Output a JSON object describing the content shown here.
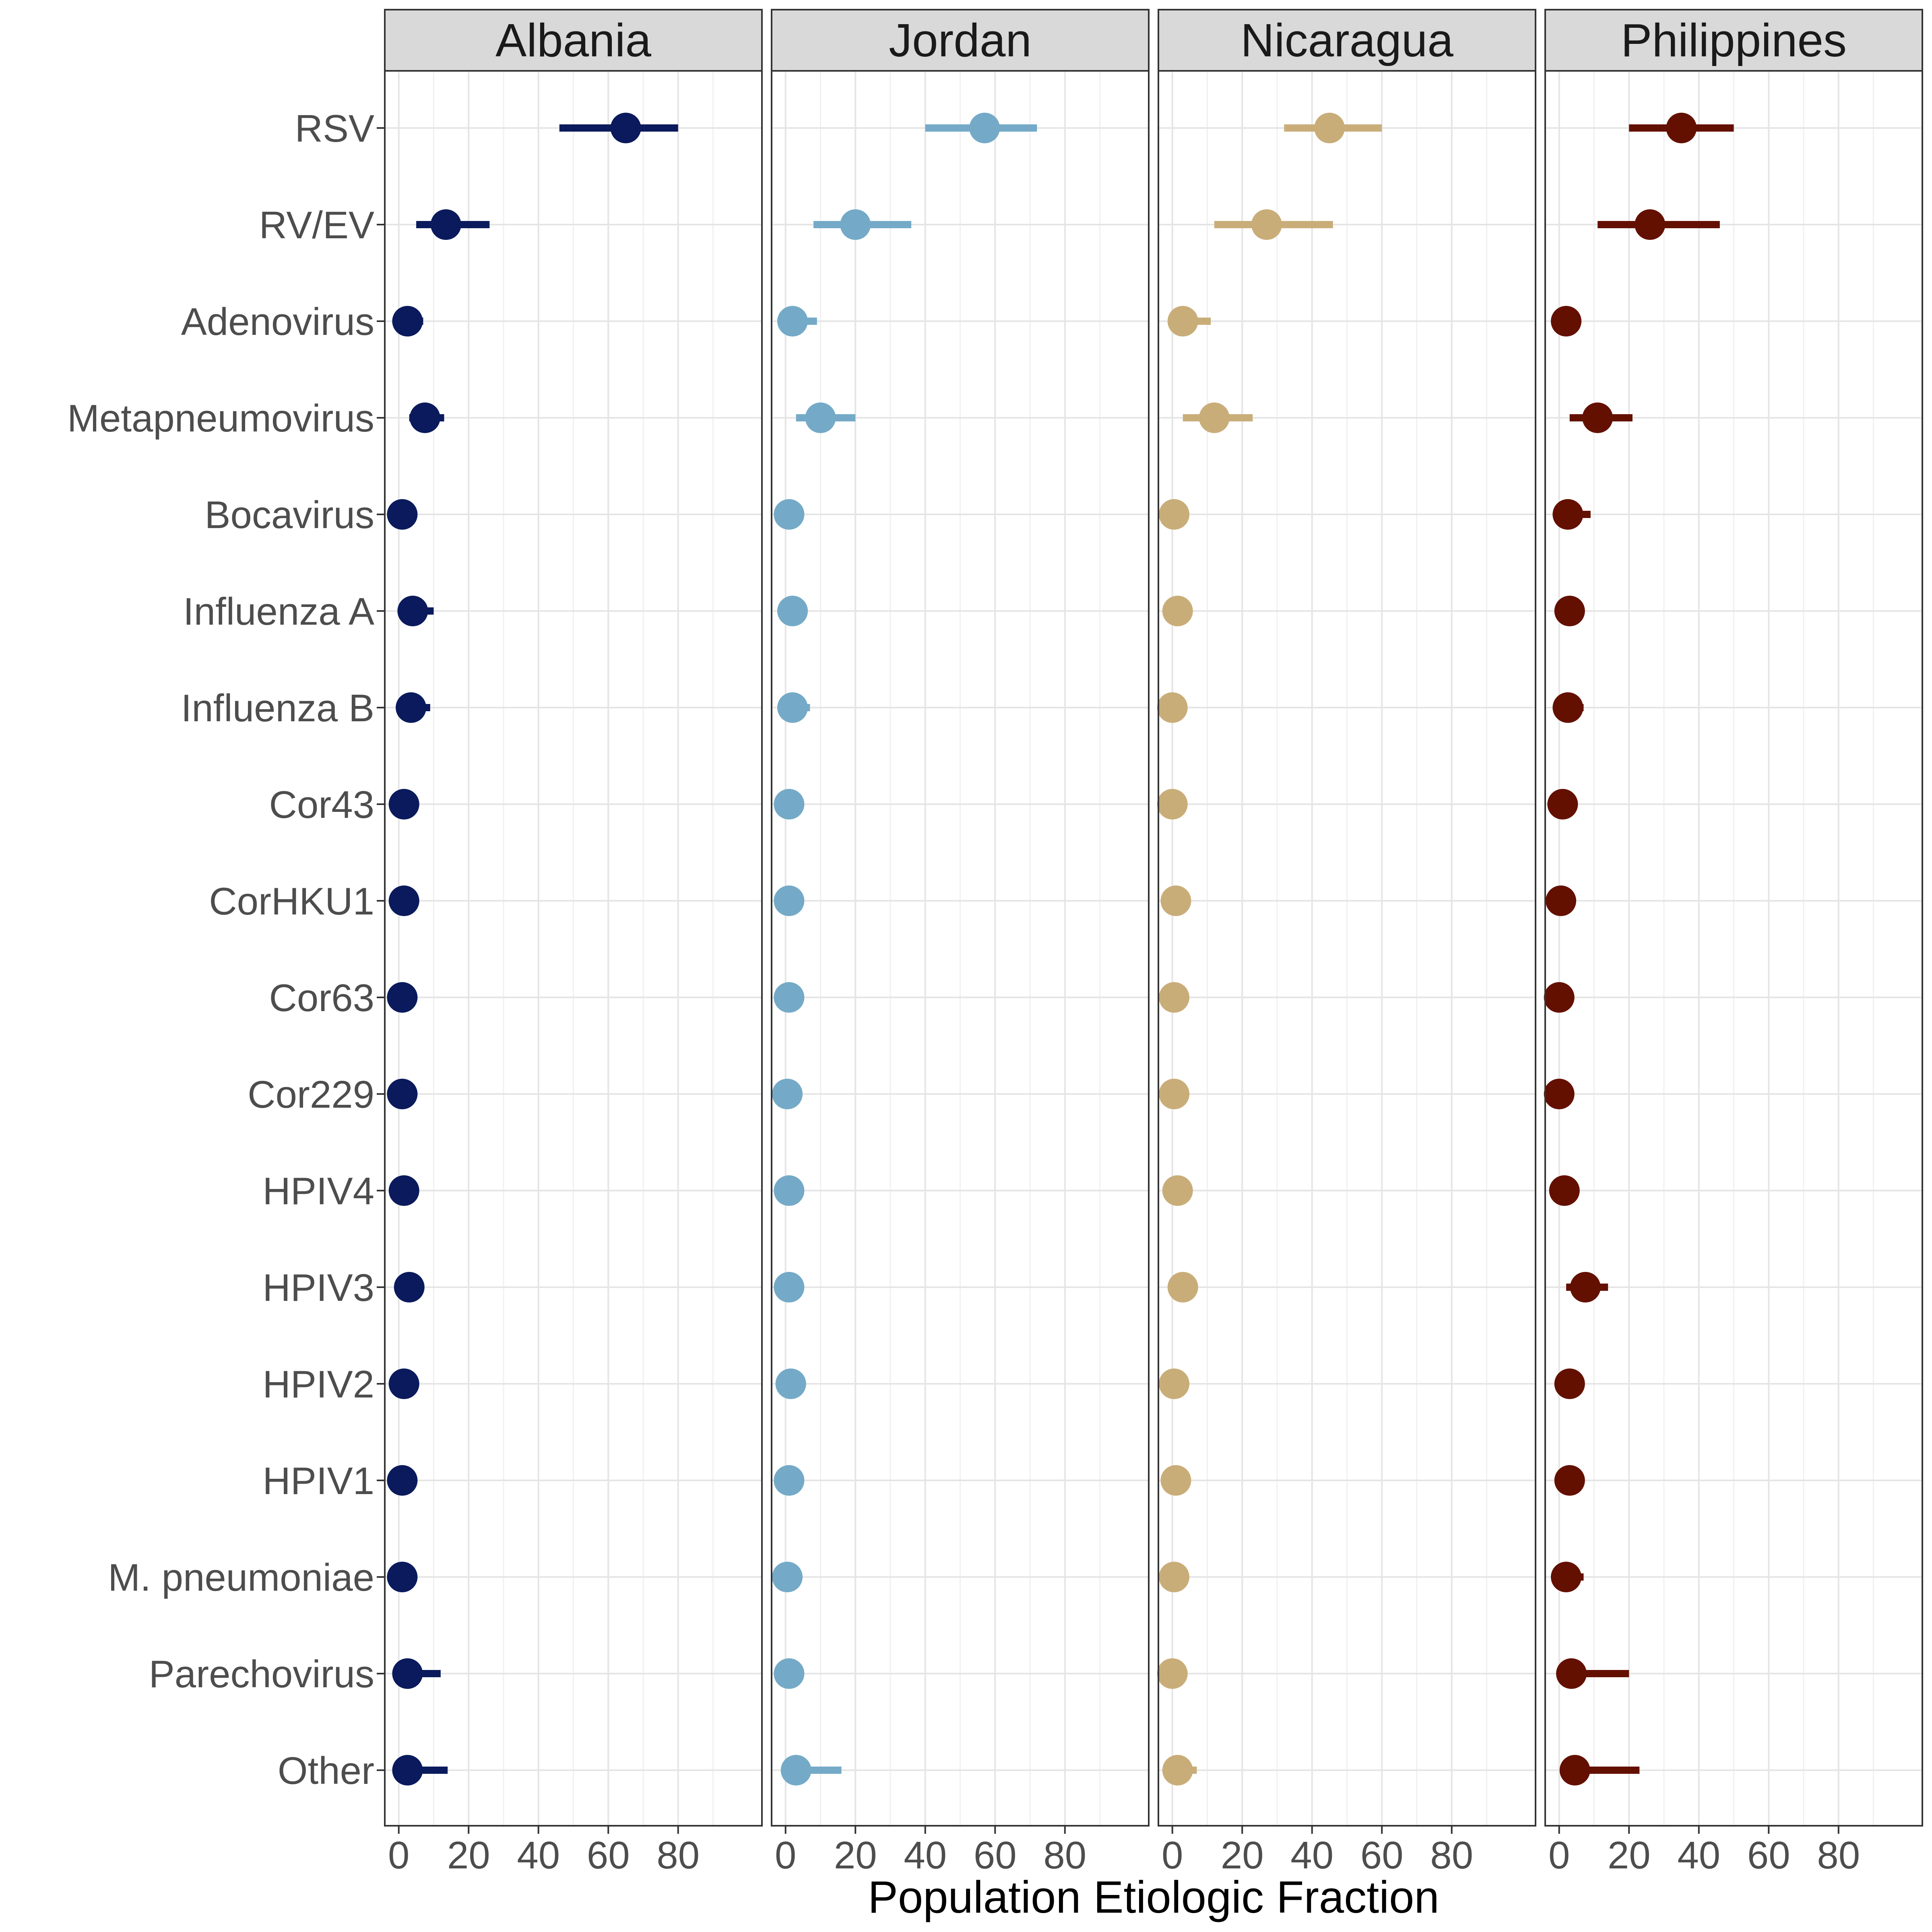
{
  "chart_data": {
    "type": "scatter",
    "subtype": "faceted point-range",
    "title": "",
    "xlabel": "Population Etiologic Fraction",
    "ylabel": "",
    "xlim": [
      -4,
      104
    ],
    "xticks": [
      0,
      20,
      40,
      60,
      80
    ],
    "tick_labels": [
      "0",
      "20",
      "40",
      "60",
      "80"
    ],
    "grid": true,
    "legend": "none",
    "categories": [
      "RSV",
      "RV/EV",
      "Adenovirus",
      "Metapneumovirus",
      "Bocavirus",
      "Influenza A",
      "Influenza B",
      "Cor43",
      "CorHKU1",
      "Cor63",
      "Cor229",
      "HPIV4",
      "HPIV3",
      "HPIV2",
      "HPIV1",
      "M. pneumoniae",
      "Parechovirus",
      "Other"
    ],
    "series": [
      {
        "name": "Albania",
        "color": "#0a1a5c",
        "values": [
          65,
          13.5,
          2.5,
          7.5,
          1,
          4,
          3.5,
          1.5,
          1.5,
          1,
          1,
          1.5,
          3,
          1.5,
          1,
          1,
          2.5,
          2.5
        ],
        "lower": [
          46,
          5,
          0.5,
          3,
          0,
          0.5,
          0.5,
          0,
          0,
          0,
          0,
          0,
          0.5,
          0,
          0,
          0,
          0.5,
          0.5
        ],
        "upper": [
          80,
          26,
          7,
          13,
          3,
          10,
          9,
          3,
          3,
          2.5,
          2.5,
          4,
          6,
          3,
          2.5,
          3,
          12,
          14
        ]
      },
      {
        "name": "Jordan",
        "color": "#74aac7",
        "values": [
          57,
          20,
          2,
          10,
          1,
          2,
          2,
          1,
          1,
          1,
          0.5,
          1,
          1,
          1.5,
          1,
          0.5,
          1,
          3
        ],
        "lower": [
          40,
          8,
          0,
          3,
          0,
          0,
          0,
          0,
          0,
          0,
          0,
          0,
          0,
          0,
          0,
          0,
          0,
          0.5
        ],
        "upper": [
          72,
          36,
          9,
          20,
          2.5,
          4,
          7,
          2.5,
          3,
          2.5,
          2,
          3,
          3,
          3,
          2.5,
          2,
          2.5,
          16
        ]
      },
      {
        "name": "Nicaragua",
        "color": "#c9ad79",
        "values": [
          45,
          27,
          3,
          12,
          0.5,
          1.5,
          0,
          0,
          1,
          0.5,
          0.5,
          1.5,
          3,
          0.5,
          1,
          0.5,
          0,
          1.5
        ],
        "lower": [
          32,
          12,
          0.5,
          3,
          0,
          0,
          0,
          0,
          0,
          0,
          0,
          0,
          0.5,
          0,
          0,
          0,
          0,
          0
        ],
        "upper": [
          60,
          46,
          11,
          23,
          2,
          4,
          2,
          2,
          3,
          2,
          2,
          4,
          6,
          2,
          3,
          2,
          2,
          7
        ]
      },
      {
        "name": "Philippines",
        "color": "#631000",
        "values": [
          35,
          26,
          2,
          11,
          2.5,
          3,
          2.5,
          1,
          0.5,
          0,
          0,
          1.5,
          7.5,
          3,
          3,
          2,
          3.5,
          4.5
        ],
        "lower": [
          20,
          11,
          0,
          3,
          0,
          0.5,
          0.5,
          0,
          0,
          0,
          0,
          0,
          2,
          0.5,
          0.5,
          0,
          0.5,
          1
        ],
        "upper": [
          50,
          46,
          6,
          21,
          9,
          7,
          7,
          3,
          2,
          1.5,
          1.5,
          4,
          14,
          6,
          6,
          7,
          20,
          23
        ]
      }
    ]
  }
}
